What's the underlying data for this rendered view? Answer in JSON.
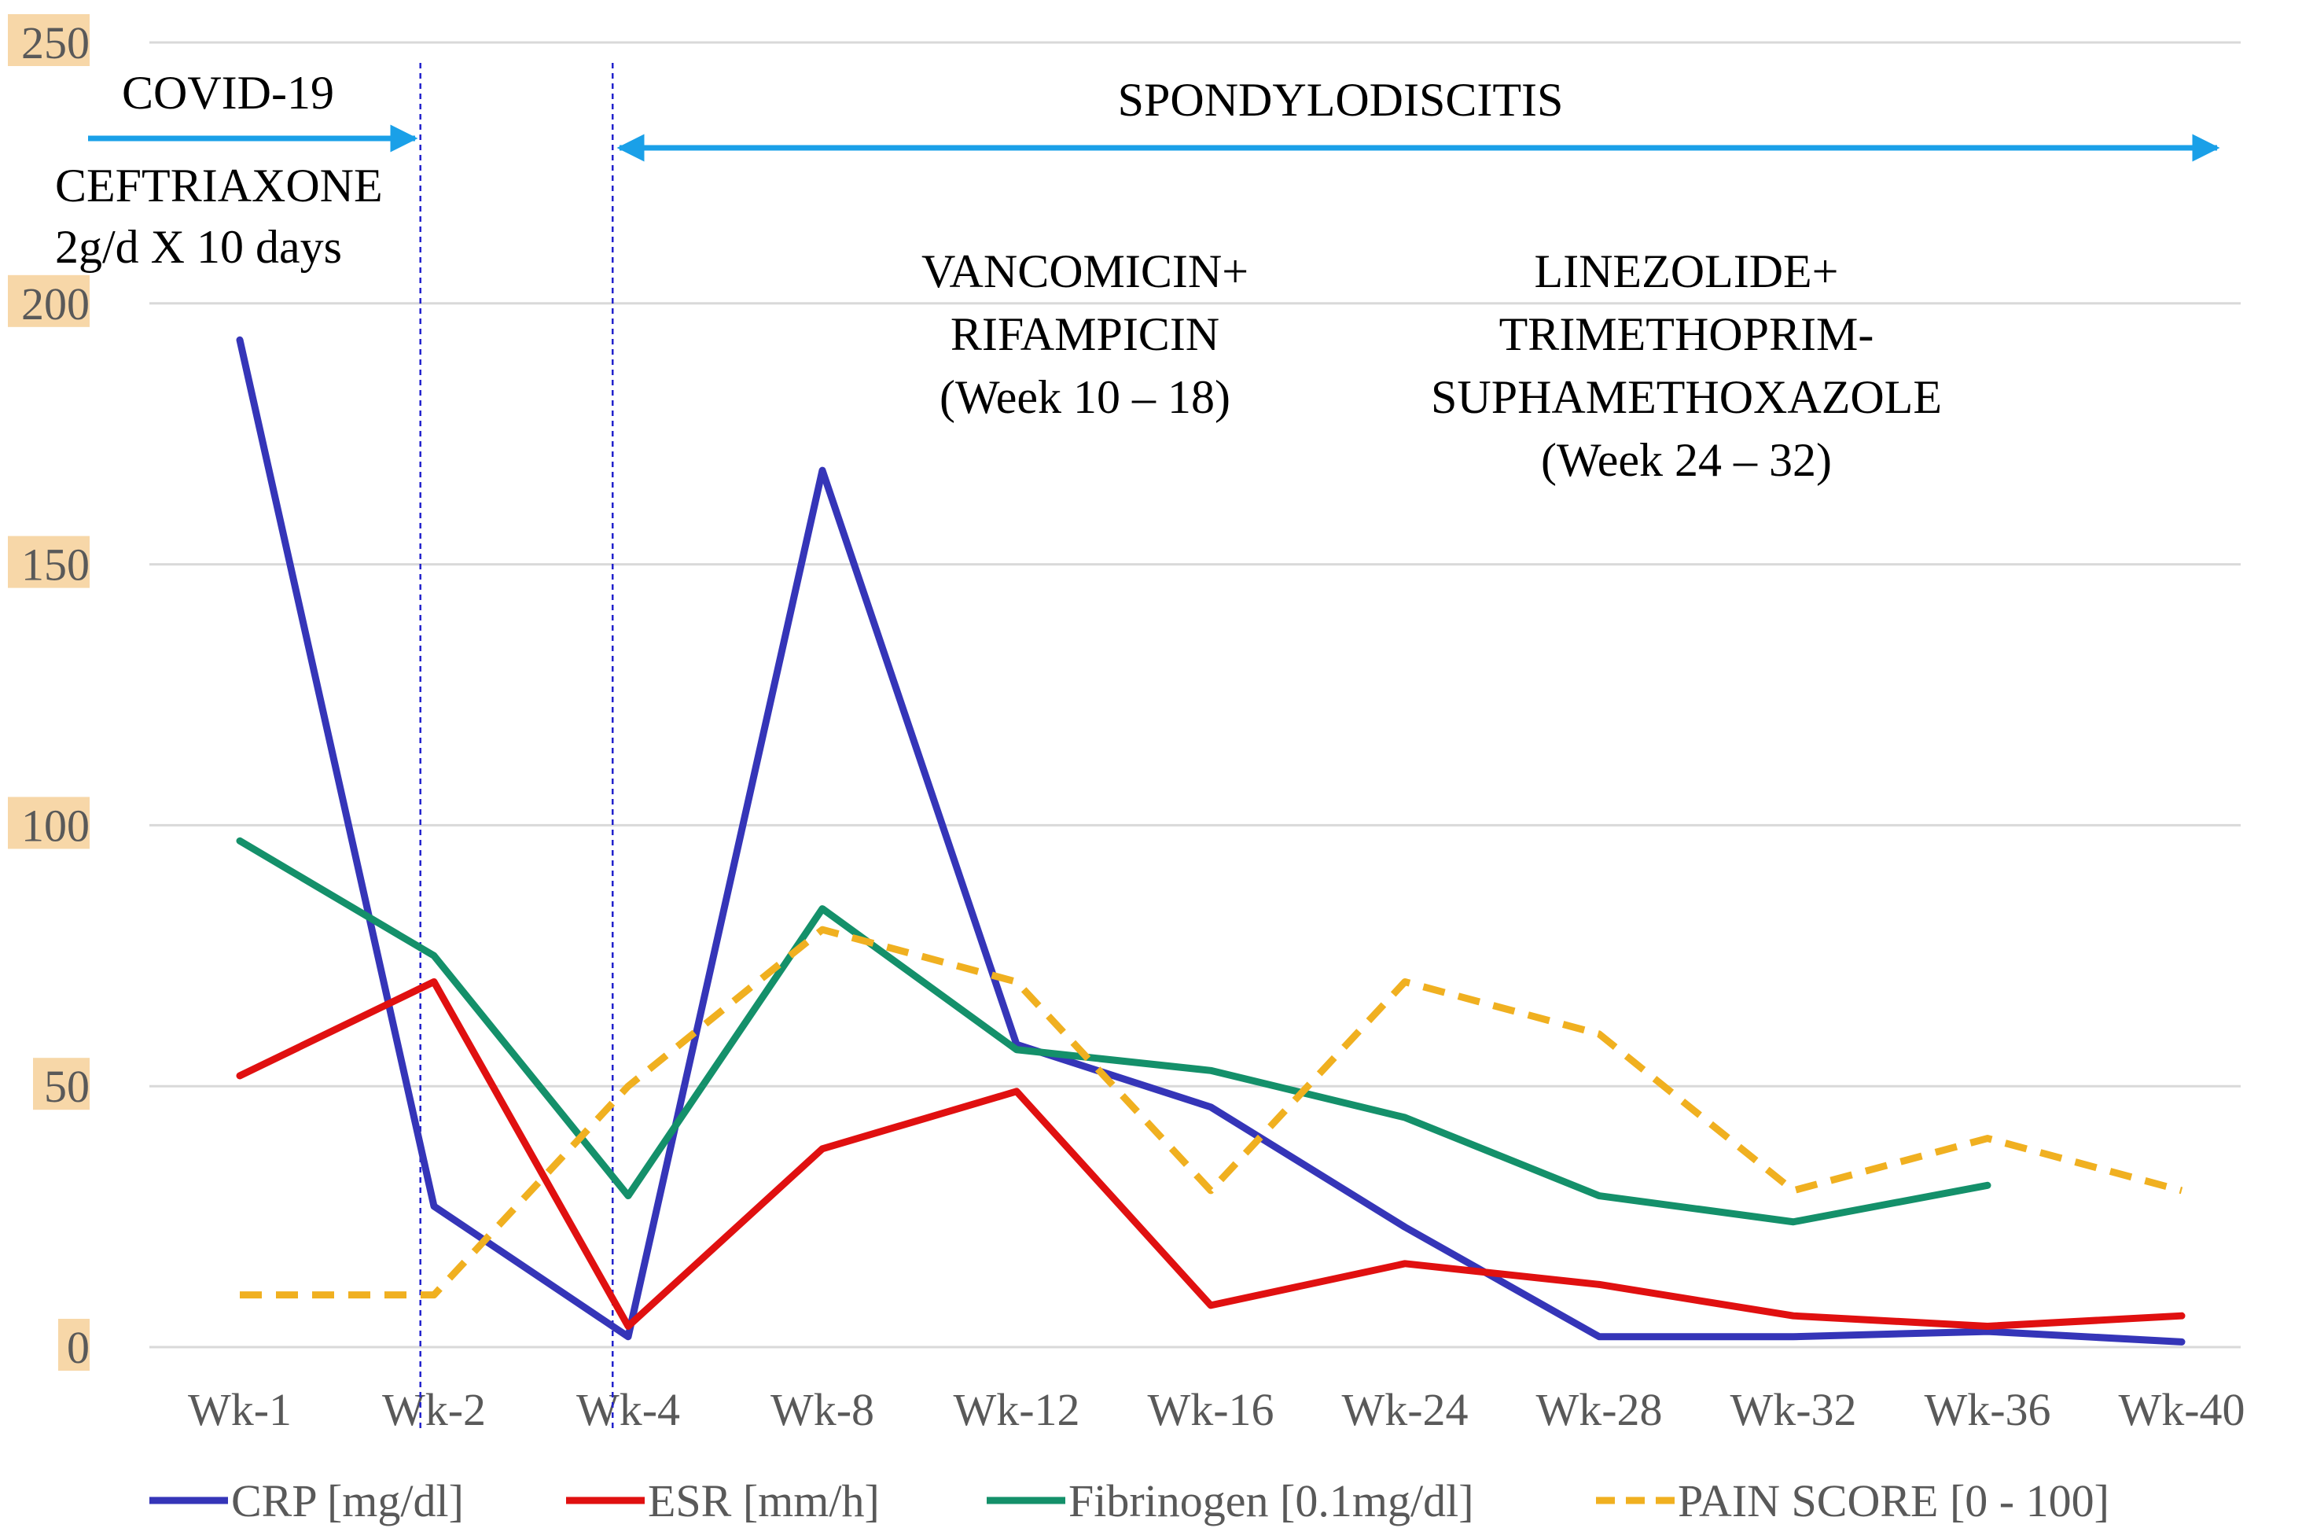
{
  "chart_data": {
    "type": "line",
    "categories": [
      "Wk-1",
      "Wk-2",
      "Wk-4",
      "Wk-8",
      "Wk-12",
      "Wk-16",
      "Wk-24",
      "Wk-28",
      "Wk-32",
      "Wk-36",
      "Wk-40"
    ],
    "ylim": [
      0,
      250
    ],
    "yticks": [
      0,
      50,
      100,
      150,
      200,
      250
    ],
    "grid": true,
    "legend_position": "bottom",
    "series": [
      {
        "name": "CRP [mg/dl]",
        "color": "#3535b8",
        "dashed": false,
        "values": [
          193,
          27,
          2,
          168,
          58,
          46,
          23,
          2,
          2,
          3,
          1
        ]
      },
      {
        "name": "ESR [mm/h]",
        "color": "#e01010",
        "dashed": false,
        "values": [
          52,
          70,
          4,
          38,
          49,
          8,
          16,
          12,
          6,
          4,
          6
        ]
      },
      {
        "name": "Fibrinogen [0.1mg/dl]",
        "color": "#14906a",
        "dashed": false,
        "values": [
          97,
          75,
          29,
          84,
          57,
          53,
          44,
          29,
          24,
          31,
          null
        ]
      },
      {
        "name": "PAIN SCORE [0 - 100]",
        "color": "#f0b020",
        "dashed": true,
        "values": [
          10,
          10,
          50,
          80,
          70,
          30,
          70,
          60,
          30,
          40,
          30
        ]
      }
    ],
    "phase_markers": [
      {
        "name": "covid-end-line",
        "position": "between Wk-1 and Wk-2"
      },
      {
        "name": "spondylodiscitis-start-line",
        "position": "between Wk-2 and Wk-4"
      }
    ],
    "annotations": {
      "covid_title": "COVID-19",
      "covid_treatment_line1": "CEFTRIAXONE",
      "covid_treatment_line2": "2g/d X 10 days",
      "spondylodiscitis_title": "SPONDYLODISCITIS",
      "vanco_line1": "VANCOMICIN+",
      "vanco_line2": "RIFAMPICIN",
      "vanco_line3": "(Week  10 – 18)",
      "linezolide_line1": "LINEZOLIDE+",
      "linezolide_line2": "TRIMETHOPRIM-",
      "linezolide_line3": "SUPHAMETHOXAZOLE",
      "linezolide_line4": "(Week  24 – 32)"
    },
    "colors": {
      "grid": "#d9d9d9",
      "tick_text": "#595959",
      "tick_highlight": "#f7d7a8",
      "phase_arrow": "#1aa0e8",
      "phase_line": "#2222cc",
      "annotation_text": "#000000"
    }
  }
}
